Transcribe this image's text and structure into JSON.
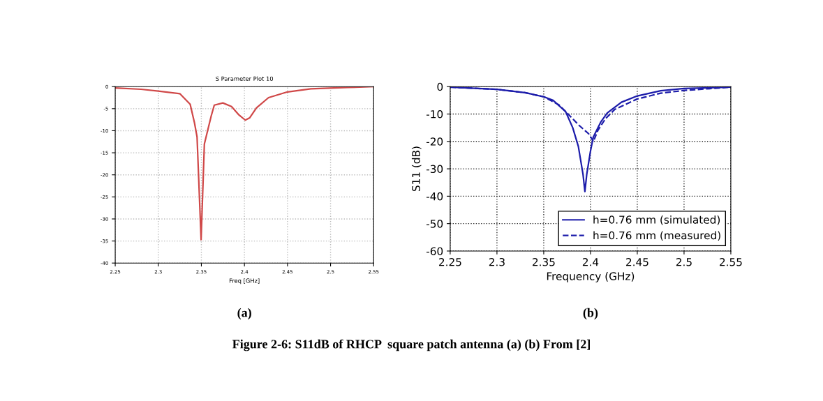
{
  "chart_data": [
    {
      "type": "line",
      "title": "S Parameter Plot 10",
      "xlabel": "Freq [GHz]",
      "xlim": [
        2.25,
        2.55
      ],
      "xticks": [
        2.25,
        2.3,
        2.35,
        2.4,
        2.45,
        2.5,
        2.55
      ],
      "ylim": [
        -40,
        0
      ],
      "yticks": [
        -40,
        -35,
        -30,
        -25,
        -20,
        -15,
        -10,
        -5,
        0
      ],
      "grid": true,
      "legend": false,
      "annotations": [
        "(a)"
      ],
      "series": [
        {
          "color": "#d04848",
          "line_style": "solid",
          "x": [
            2.25,
            2.28,
            2.3,
            2.325,
            2.337,
            2.342,
            2.345,
            2.3497,
            2.3535,
            2.356,
            2.3615,
            2.365,
            2.375,
            2.385,
            2.393,
            2.401,
            2.406,
            2.414,
            2.428,
            2.45,
            2.477,
            2.52,
            2.55
          ],
          "values": [
            -0.3,
            -0.6,
            -1.0,
            -1.6,
            -4.0,
            -8.2,
            -11.4,
            -34.7,
            -13.0,
            -11.0,
            -6.6,
            -4.2,
            -3.7,
            -4.5,
            -6.3,
            -7.6,
            -7.1,
            -4.8,
            -2.5,
            -1.2,
            -0.5,
            -0.2,
            0
          ]
        }
      ]
    },
    {
      "type": "line",
      "xlabel": "Frequency (GHz)",
      "ylabel": "S11 (dB)",
      "xlim": [
        2.25,
        2.55
      ],
      "xticks": [
        2.25,
        2.3,
        2.35,
        2.4,
        2.45,
        2.5,
        2.55
      ],
      "ylim": [
        -60,
        0
      ],
      "yticks": [
        -60,
        -50,
        -40,
        -30,
        -20,
        -10,
        0
      ],
      "grid": true,
      "legend": "bottom right",
      "annotations": [
        "(b)",
        "Figure 2-6: S11dB of RHCP  square patch antenna (a) (b) From [2]"
      ],
      "series": [
        {
          "name": "h=0.76 mm (simulated)",
          "color": "#1c1caa",
          "line_style": "solid",
          "x": [
            2.25,
            2.3,
            2.33,
            2.35,
            2.36,
            2.3734,
            2.381,
            2.387,
            2.392,
            2.394,
            2.396,
            2.4,
            2.403,
            2.411,
            2.418,
            2.433,
            2.45,
            2.475,
            2.5,
            2.55
          ],
          "values": [
            -0.2,
            -1.0,
            -2.2,
            -3.7,
            -5.0,
            -9.1,
            -15.0,
            -21.8,
            -32.0,
            -38.3,
            -32.0,
            -23.5,
            -18.4,
            -12.9,
            -9.6,
            -5.7,
            -3.4,
            -1.5,
            -0.7,
            -0.2
          ]
        },
        {
          "name": "h=0.76 mm (measured)",
          "color": "#1c1caa",
          "line_style": "dashed",
          "x": [
            2.25,
            2.3,
            2.33,
            2.35,
            2.366,
            2.376,
            2.388,
            2.398,
            2.401,
            2.403,
            2.408,
            2.416,
            2.426,
            2.45,
            2.475,
            2.5,
            2.55
          ],
          "values": [
            -0.2,
            -1.0,
            -2.2,
            -3.7,
            -6.6,
            -10.0,
            -14.2,
            -17.2,
            -18.8,
            -20.1,
            -15.9,
            -11.7,
            -8.3,
            -4.5,
            -2.4,
            -1.4,
            -0.2
          ]
        }
      ]
    }
  ]
}
